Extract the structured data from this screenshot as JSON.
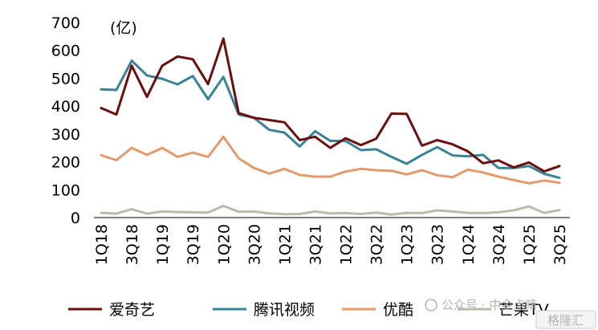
{
  "chart_data": {
    "type": "line",
    "unit_label": "(亿)",
    "x": [
      "1Q18",
      "2Q18",
      "3Q18",
      "4Q18",
      "1Q19",
      "2Q19",
      "3Q19",
      "4Q19",
      "1Q20",
      "2Q20",
      "3Q20",
      "4Q20",
      "1Q21",
      "2Q21",
      "3Q21",
      "4Q21",
      "1Q22",
      "2Q22",
      "3Q22",
      "4Q22",
      "1Q23",
      "2Q23",
      "3Q23",
      "4Q23",
      "1Q24",
      "2Q24",
      "3Q24",
      "4Q24",
      "1Q25",
      "2Q25",
      "3Q25"
    ],
    "x_tick_labels": [
      "1Q18",
      "3Q18",
      "1Q19",
      "3Q19",
      "1Q20",
      "3Q20",
      "1Q21",
      "3Q21",
      "1Q22",
      "3Q22",
      "1Q23",
      "3Q23",
      "1Q24",
      "3Q24",
      "1Q25",
      "3Q25"
    ],
    "ylim": [
      0,
      700
    ],
    "y_ticks": [
      0,
      100,
      200,
      300,
      400,
      500,
      600,
      700
    ],
    "grid": false,
    "legend_position": "bottom",
    "series": [
      {
        "name": "爱奇艺",
        "color": "#6b0f0f",
        "values": [
          393,
          370,
          545,
          433,
          545,
          578,
          568,
          479,
          642,
          375,
          358,
          350,
          342,
          278,
          290,
          250,
          285,
          260,
          283,
          373,
          372,
          258,
          278,
          263,
          238,
          195,
          205,
          180,
          198,
          166,
          185
        ]
      },
      {
        "name": "腾讯视频",
        "color": "#3a8396",
        "values": [
          460,
          458,
          563,
          510,
          498,
          478,
          508,
          425,
          505,
          370,
          358,
          315,
          305,
          255,
          310,
          275,
          275,
          242,
          245,
          218,
          193,
          225,
          253,
          223,
          220,
          225,
          178,
          178,
          185,
          157,
          143
        ]
      },
      {
        "name": "优酷",
        "color": "#e49a6c",
        "values": [
          224,
          206,
          250,
          225,
          250,
          218,
          233,
          218,
          290,
          213,
          178,
          158,
          175,
          153,
          147,
          147,
          165,
          175,
          170,
          168,
          155,
          170,
          152,
          145,
          172,
          162,
          147,
          135,
          123,
          133,
          125
        ]
      },
      {
        "name": "芒果TV",
        "color": "#b9bbab",
        "values": [
          17,
          14,
          30,
          14,
          22,
          20,
          19,
          18,
          42,
          21,
          22,
          15,
          12,
          13,
          22,
          15,
          16,
          13,
          18,
          11,
          17,
          16,
          26,
          22,
          17,
          16,
          19,
          26,
          40,
          17,
          27
        ]
      }
    ]
  },
  "watermark": {
    "text": "公众号 · 中金点睛",
    "badge": "格隆汇"
  }
}
